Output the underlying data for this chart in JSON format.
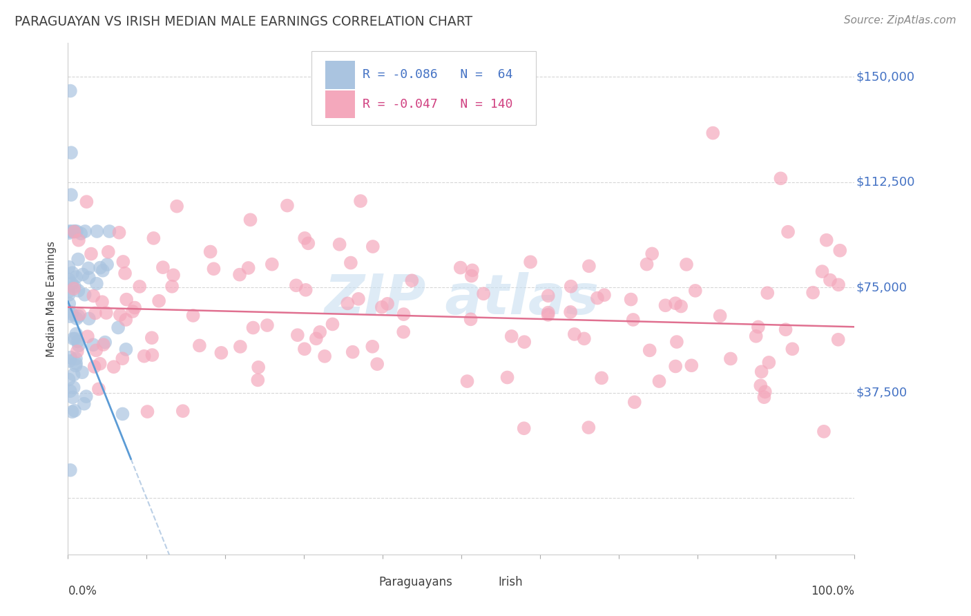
{
  "title": "PARAGUAYAN VS IRISH MEDIAN MALE EARNINGS CORRELATION CHART",
  "source": "Source: ZipAtlas.com",
  "ylabel": "Median Male Earnings",
  "ytick_vals": [
    0,
    37500,
    75000,
    112500,
    150000
  ],
  "ytick_labels": [
    "",
    "$37,500",
    "$75,000",
    "$112,500",
    "$150,000"
  ],
  "xmin": 0.0,
  "xmax": 1.0,
  "ymin": -20000,
  "ymax": 162000,
  "blue_scatter_color": "#aac4e0",
  "pink_scatter_color": "#f4a8bc",
  "blue_line_color": "#5b9bd5",
  "pink_line_color": "#e07090",
  "blue_dashed_color": "#aac4e0",
  "title_color": "#404040",
  "source_color": "#888888",
  "axis_label_color": "#4472c4",
  "watermark_color": "#c8dff0",
  "legend_blue_r": "R = -0.086",
  "legend_blue_n": "N =  64",
  "legend_pink_r": "R = -0.047",
  "legend_pink_n": "N = 140",
  "blue_intercept": 70000,
  "blue_slope": -700000,
  "pink_intercept": 68000,
  "pink_slope": -7000,
  "blue_line_xend": 0.08,
  "blue_dashed_xstart": 0.0,
  "blue_dashed_xend": 1.0
}
